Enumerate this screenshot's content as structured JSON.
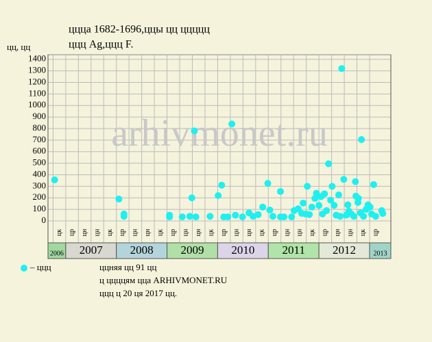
{
  "chart_data": {
    "type": "scatter",
    "title": "цццa 1682-1696,ццы цц ццццц",
    "subtitle": "ццц Ag,ццц F.",
    "y_label": "цц, цц",
    "watermark": "arhivmonet.ru",
    "color": "#1ef0f0",
    "grid": true,
    "xlim": [
      2006.65,
      2013.42
    ],
    "ylim": [
      0,
      1440
    ],
    "yticks": [
      0,
      100,
      200,
      300,
      400,
      500,
      600,
      700,
      800,
      900,
      1000,
      1100,
      1200,
      1300,
      1400
    ],
    "period_labels": [
      "цк",
      "цр",
      "цн",
      "цн",
      "цк",
      "цр",
      "цн",
      "цн",
      "цк",
      "цр",
      "цн",
      "цн",
      "цк",
      "цр",
      "цн",
      "цн",
      "цк",
      "цр",
      "цн",
      "цн",
      "цк",
      "цр",
      "цн",
      "цн",
      "цк",
      "цр"
    ],
    "years": [
      "2006",
      "2007",
      "2008",
      "2009",
      "2010",
      "2011",
      "2012",
      "2013"
    ],
    "year_colors": [
      "#a0d8a0",
      "#d8d8d0",
      "#b4d4dc",
      "#b0e0a8",
      "#dcd4e8",
      "#b0e4a8",
      "#e4e8d8",
      "#a0d4c8"
    ],
    "series": [
      {
        "name": "– ццц",
        "color": "#1ef0f0",
        "x": [
          2006.78,
          2008.05,
          2008.15,
          2008.15,
          2009.05,
          2009.05,
          2009.3,
          2009.45,
          2009.49,
          2009.54,
          2009.57,
          2009.85,
          2010.01,
          2010.08,
          2010.12,
          2010.2,
          2010.28,
          2010.35,
          2010.49,
          2010.62,
          2010.7,
          2010.8,
          2010.89,
          2010.99,
          2011.03,
          2011.09,
          2011.24,
          2011.24,
          2011.31,
          2011.46,
          2011.51,
          2011.59,
          2011.66,
          2011.69,
          2011.74,
          2011.77,
          2011.81,
          2011.86,
          2011.92,
          2011.95,
          2012.0,
          2012.04,
          2012.07,
          2012.11,
          2012.15,
          2012.19,
          2012.23,
          2012.26,
          2012.3,
          2012.34,
          2012.39,
          2012.42,
          2012.45,
          2012.49,
          2012.54,
          2012.57,
          2012.59,
          2012.64,
          2012.69,
          2012.72,
          2012.73,
          2012.77,
          2012.78,
          2012.82,
          2012.84,
          2012.88,
          2012.93,
          2012.97,
          2013.01,
          2013.04,
          2013.08,
          2013.12,
          2013.24,
          2013.26
        ],
        "values": [
          356,
          190,
          60,
          40,
          50,
          35,
          35,
          40,
          200,
          780,
          35,
          40,
          220,
          310,
          35,
          35,
          840,
          50,
          35,
          70,
          40,
          55,
          120,
          325,
          95,
          40,
          255,
          35,
          35,
          35,
          90,
          105,
          65,
          155,
          60,
          300,
          55,
          120,
          195,
          240,
          135,
          210,
          60,
          235,
          90,
          495,
          180,
          300,
          135,
          50,
          225,
          40,
          1320,
          360,
          50,
          140,
          85,
          60,
          40,
          340,
          215,
          160,
          195,
          70,
          705,
          40,
          100,
          140,
          120,
          60,
          315,
          40,
          90,
          65
        ]
      }
    ],
    "notes": [
      "ццняя цц 91 цц",
      "ц ццццям цца ARHIVMONET.RU",
      "ццц ц 20 ця 2017 цц."
    ]
  }
}
